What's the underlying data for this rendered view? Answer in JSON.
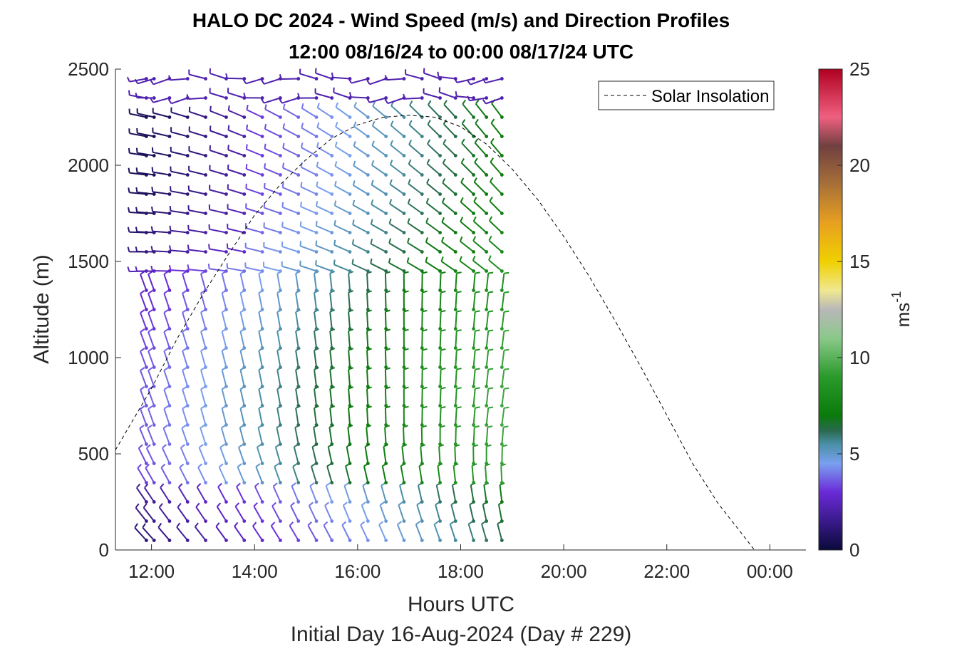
{
  "chart_data": {
    "type": "wind-barb profile",
    "title": "HALO DC 2024 - Wind Speed (m/s) and Direction Profiles",
    "subtitle": "12:00 08/16/24 to 00:00 08/17/24  UTC",
    "xlabel": "Hours UTC",
    "xlabel2": "Initial Day 16-Aug-2024 (Day # 229)",
    "ylabel": "Altitude (m)",
    "xlim_hours": [
      11.3,
      24.7
    ],
    "ylim": [
      0,
      2500
    ],
    "x_ticks": [
      {
        "value": 12,
        "label": "12:00"
      },
      {
        "value": 14,
        "label": "14:00"
      },
      {
        "value": 16,
        "label": "16:00"
      },
      {
        "value": 18,
        "label": "18:00"
      },
      {
        "value": 20,
        "label": "20:00"
      },
      {
        "value": 22,
        "label": "22:00"
      },
      {
        "value": 24,
        "label": "00:00"
      }
    ],
    "y_ticks": [
      0,
      500,
      1000,
      1500,
      2000,
      2500
    ],
    "colorbar": {
      "label": "ms",
      "label_exponent": "-1",
      "range": [
        0,
        25
      ],
      "ticks": [
        0,
        5,
        10,
        15,
        20,
        25
      ],
      "stops": [
        {
          "v": 0,
          "color": "#0a0a3a"
        },
        {
          "v": 1.5,
          "color": "#3a1a8a"
        },
        {
          "v": 3,
          "color": "#6a2ad8"
        },
        {
          "v": 4.5,
          "color": "#7aa0f0"
        },
        {
          "v": 5.5,
          "color": "#4a90a8"
        },
        {
          "v": 6.2,
          "color": "#2a6a50"
        },
        {
          "v": 7,
          "color": "#0a7a0a"
        },
        {
          "v": 9,
          "color": "#2a9a2a"
        },
        {
          "v": 11,
          "color": "#8ac88a"
        },
        {
          "v": 12.5,
          "color": "#b8b8b8"
        },
        {
          "v": 13.5,
          "color": "#f0e890"
        },
        {
          "v": 15,
          "color": "#f0d000"
        },
        {
          "v": 17,
          "color": "#e8a020"
        },
        {
          "v": 19,
          "color": "#a87038"
        },
        {
          "v": 21,
          "color": "#704040"
        },
        {
          "v": 22.5,
          "color": "#f06080"
        },
        {
          "v": 25,
          "color": "#b00020"
        }
      ]
    },
    "legend": {
      "entries": [
        "Solar Insolation"
      ],
      "position": "top-right"
    },
    "solar_insolation_curve": {
      "style": "dashed",
      "points": [
        [
          11.3,
          520
        ],
        [
          12.0,
          840
        ],
        [
          12.5,
          1100
        ],
        [
          13.0,
          1330
        ],
        [
          13.5,
          1540
        ],
        [
          14.0,
          1740
        ],
        [
          14.5,
          1900
        ],
        [
          15.0,
          2030
        ],
        [
          15.5,
          2140
        ],
        [
          16.0,
          2210
        ],
        [
          16.5,
          2250
        ],
        [
          17.0,
          2260
        ],
        [
          17.5,
          2250
        ],
        [
          18.0,
          2200
        ],
        [
          18.5,
          2110
        ],
        [
          19.0,
          1980
        ],
        [
          19.5,
          1820
        ],
        [
          20.0,
          1630
        ],
        [
          20.5,
          1420
        ],
        [
          21.0,
          1190
        ],
        [
          21.5,
          950
        ],
        [
          22.0,
          700
        ],
        [
          22.5,
          450
        ],
        [
          23.0,
          240
        ],
        [
          23.5,
          70
        ],
        [
          23.7,
          0
        ],
        [
          24.7,
          0
        ]
      ]
    },
    "wind_profiles": {
      "times_hours": [
        11.9,
        12.05,
        12.35,
        12.7,
        13.05,
        13.45,
        13.8,
        14.15,
        14.5,
        14.85,
        15.2,
        15.5,
        15.85,
        16.2,
        16.55,
        16.9,
        17.25,
        17.6,
        17.9,
        18.25,
        18.5,
        18.8
      ],
      "altitudes_m": [
        50,
        150,
        250,
        350,
        450,
        550,
        650,
        750,
        850,
        950,
        1050,
        1150,
        1250,
        1350,
        1450,
        1550,
        1650,
        1750,
        1850,
        1950,
        2050,
        2150,
        2250,
        2350,
        2450
      ]
    }
  }
}
